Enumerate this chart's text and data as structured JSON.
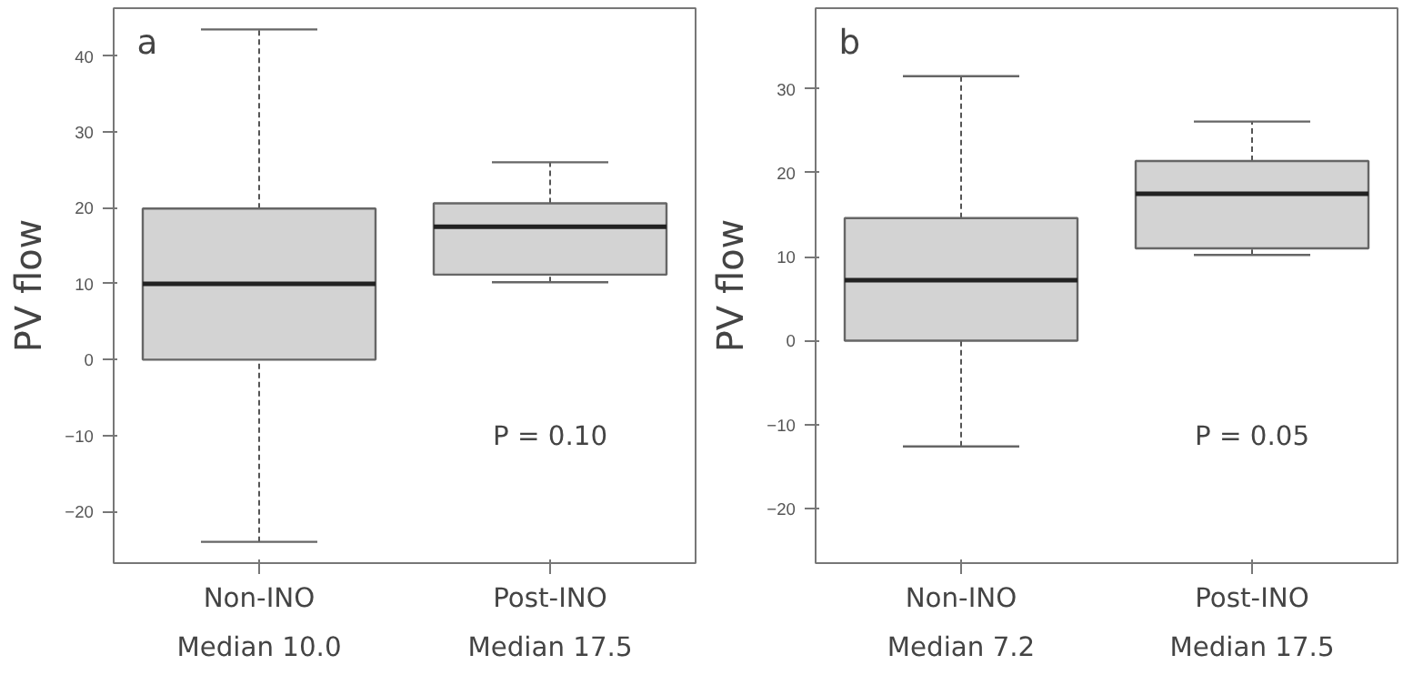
{
  "chart_data": [
    {
      "type": "box",
      "title": "a",
      "ylabel": "PV flow",
      "categories": [
        "Non-INO\nMedian 10.0",
        "Post-INO\nMedian 17.5"
      ],
      "color": "#d3d3d3",
      "boxes": [
        {
          "low": -24.0,
          "q1": 0,
          "median": 10.0,
          "q3": 19.9,
          "high": 43.5
        },
        {
          "low": 10.2,
          "q1": 11.2,
          "median": 17.5,
          "q3": 20.6,
          "high": 26.0
        }
      ],
      "ylim": [
        -26.8,
        46.3
      ],
      "yticks": [
        -20,
        -10,
        0,
        10,
        20,
        30,
        40
      ],
      "grid": false,
      "annotations": [
        "P = 0.10"
      ]
    },
    {
      "type": "box",
      "title": "b",
      "ylabel": "PV flow",
      "categories": [
        "Non-INO\nMedian 7.2",
        "Post-INO\nMedian 17.5"
      ],
      "color": "#d3d3d3",
      "boxes": [
        {
          "low": -12.6,
          "q1": 0,
          "median": 7.2,
          "q3": 14.6,
          "high": 31.5
        },
        {
          "low": 10.2,
          "q1": 11.0,
          "median": 17.5,
          "q3": 21.4,
          "high": 26.1
        }
      ],
      "ylim": [
        -26.5,
        39.6
      ],
      "yticks": [
        -20,
        -10,
        0,
        10,
        20,
        30
      ],
      "grid": false,
      "annotations": [
        "P = 0.05"
      ]
    }
  ]
}
